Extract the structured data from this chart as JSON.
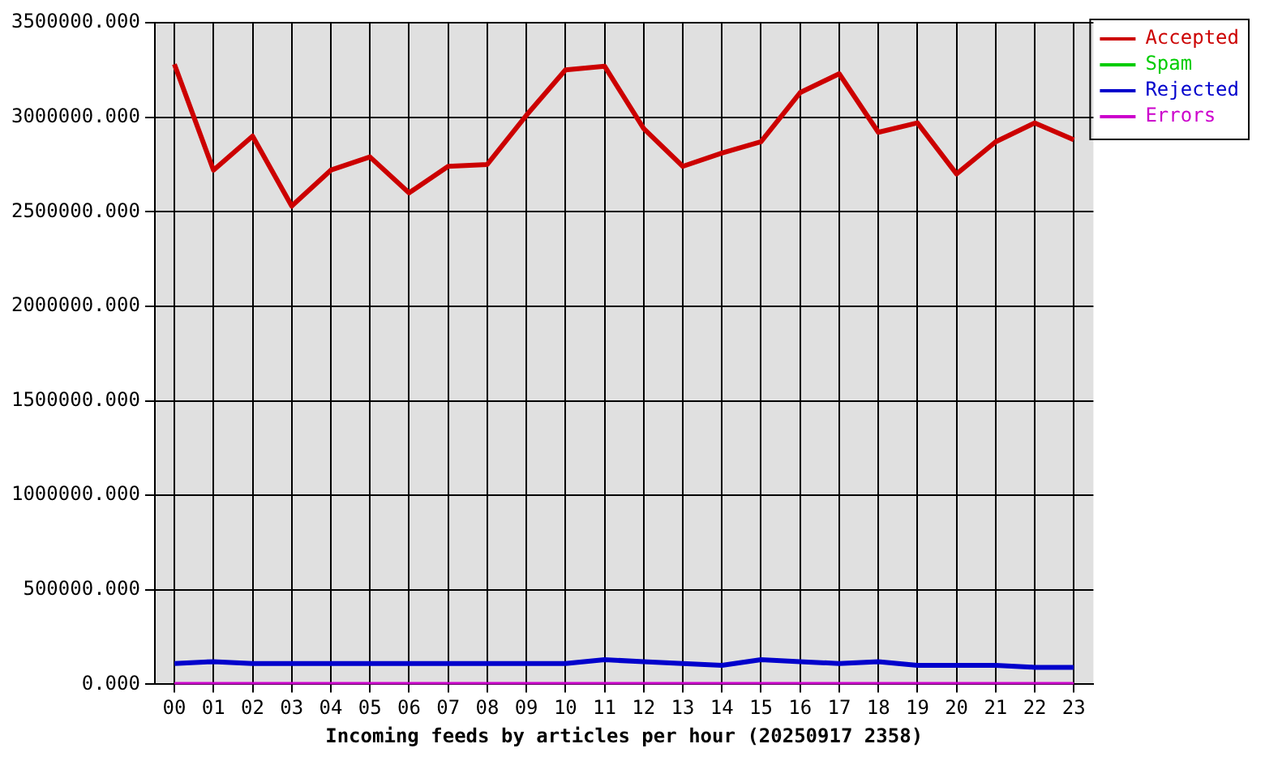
{
  "chart_data": {
    "type": "line",
    "xlabel": "Incoming feeds by articles per hour (20250917 2358)",
    "categories": [
      "00",
      "01",
      "02",
      "03",
      "04",
      "05",
      "06",
      "07",
      "08",
      "09",
      "10",
      "11",
      "12",
      "13",
      "14",
      "15",
      "16",
      "17",
      "18",
      "19",
      "20",
      "21",
      "22",
      "23"
    ],
    "series": [
      {
        "name": "Accepted",
        "color": "#cc0000",
        "values": [
          3280000,
          2720000,
          2900000,
          2530000,
          2720000,
          2790000,
          2600000,
          2740000,
          2750000,
          3010000,
          3250000,
          3270000,
          2940000,
          2740000,
          2810000,
          2870000,
          3130000,
          3230000,
          2920000,
          2970000,
          2700000,
          2870000,
          2970000,
          2880000
        ]
      },
      {
        "name": "Spam",
        "color": "#00cc00",
        "values": [
          null,
          null,
          null,
          null,
          null,
          null,
          null,
          null,
          null,
          null,
          null,
          null,
          null,
          null,
          null,
          null,
          null,
          null,
          null,
          null,
          null,
          null,
          null,
          null
        ]
      },
      {
        "name": "Rejected",
        "color": "#0000cc",
        "values": [
          110000,
          120000,
          110000,
          110000,
          110000,
          110000,
          110000,
          110000,
          110000,
          110000,
          110000,
          130000,
          120000,
          110000,
          100000,
          130000,
          120000,
          110000,
          120000,
          100000,
          100000,
          100000,
          90000,
          90000
        ]
      },
      {
        "name": "Errors",
        "color": "#cc00cc",
        "values": [
          0,
          0,
          0,
          0,
          0,
          0,
          0,
          0,
          0,
          0,
          0,
          0,
          0,
          0,
          0,
          0,
          0,
          0,
          0,
          0,
          0,
          0,
          0,
          0
        ]
      }
    ],
    "ylim": [
      0,
      3500000
    ],
    "yticks": [
      {
        "value": 0,
        "label": "0.000"
      },
      {
        "value": 500000,
        "label": "500000.000"
      },
      {
        "value": 1000000,
        "label": "1000000.000"
      },
      {
        "value": 1500000,
        "label": "1500000.000"
      },
      {
        "value": 2000000,
        "label": "2000000.000"
      },
      {
        "value": 2500000,
        "label": "2500000.000"
      },
      {
        "value": 3000000,
        "label": "3000000.000"
      },
      {
        "value": 3500000,
        "label": "3500000.000"
      }
    ],
    "grid": true,
    "legend": "top right",
    "marker": "none",
    "line_style": "solid"
  }
}
